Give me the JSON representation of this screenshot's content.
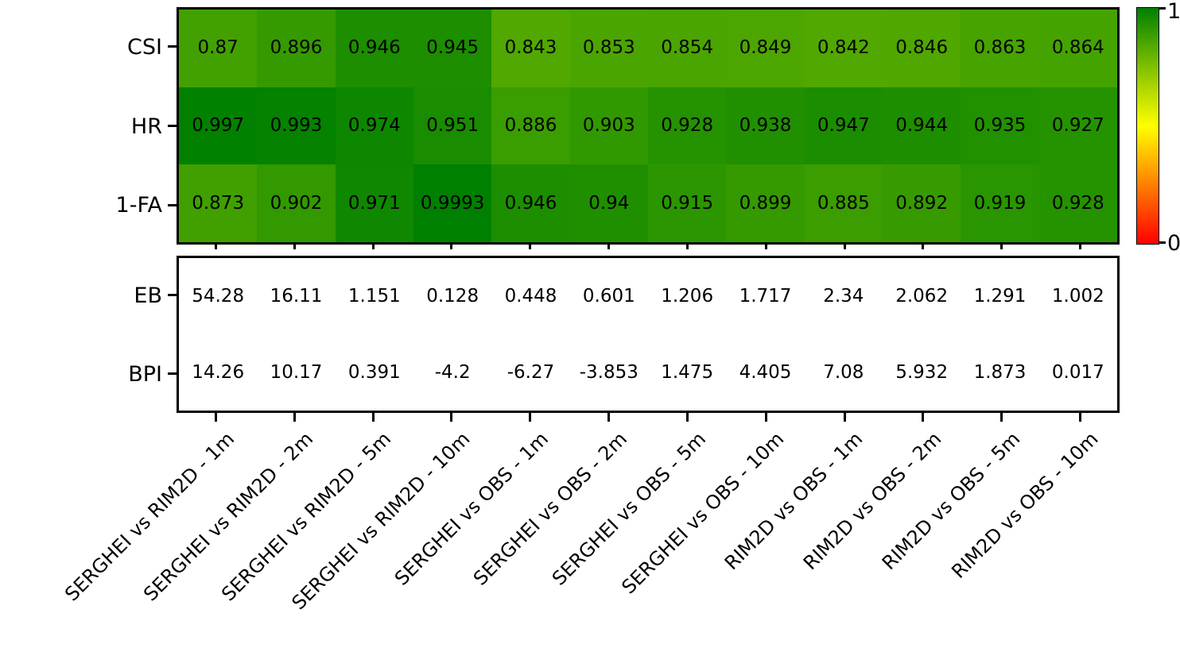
{
  "chart_data": {
    "type": "heatmap",
    "title": "",
    "xlabel": "",
    "ylabel": "",
    "categories": [
      "SERGHEI vs RIM2D - 1m",
      "SERGHEI vs RIM2D - 2m",
      "SERGHEI vs RIM2D - 5m",
      "SERGHEI vs RIM2D - 10m",
      "SERGHEI vs OBS - 1m",
      "SERGHEI vs OBS - 2m",
      "SERGHEI vs OBS - 5m",
      "SERGHEI vs OBS - 10m",
      "RIM2D vs OBS - 1m",
      "RIM2D vs OBS - 2m",
      "RIM2D vs OBS - 5m",
      "RIM2D vs OBS - 10m"
    ],
    "panels": [
      {
        "name": "skill-scores-heatmap",
        "style": "colormapped",
        "rows": [
          "CSI",
          "HR",
          "1-FA"
        ],
        "series": [
          {
            "name": "CSI",
            "values": [
              0.87,
              0.896,
              0.946,
              0.945,
              0.843,
              0.853,
              0.854,
              0.849,
              0.842,
              0.846,
              0.863,
              0.864
            ]
          },
          {
            "name": "HR",
            "values": [
              0.997,
              0.993,
              0.974,
              0.951,
              0.886,
              0.903,
              0.928,
              0.938,
              0.947,
              0.944,
              0.935,
              0.927
            ]
          },
          {
            "name": "1-FA",
            "values": [
              0.873,
              0.902,
              0.971,
              0.9993,
              0.946,
              0.94,
              0.915,
              0.899,
              0.885,
              0.892,
              0.919,
              0.928
            ]
          }
        ],
        "vmin": 0,
        "vmax": 1
      },
      {
        "name": "error-metrics-table",
        "style": "plain",
        "rows": [
          "EB",
          "BPI"
        ],
        "series": [
          {
            "name": "EB",
            "values": [
              54.28,
              16.11,
              1.151,
              0.128,
              0.448,
              0.601,
              1.206,
              1.717,
              2.34,
              2.062,
              1.291,
              1.002
            ]
          },
          {
            "name": "BPI",
            "values": [
              14.26,
              10.17,
              0.391,
              -4.2,
              -6.27,
              -3.853,
              1.475,
              4.405,
              7.08,
              5.932,
              1.873,
              0.017
            ]
          }
        ]
      }
    ],
    "colorbar": {
      "top_label": "1",
      "bottom_label": "0",
      "low_color": "#ff0000",
      "mid_color": "#ffff00",
      "high_color": "#008000"
    },
    "grid": false,
    "legend_position": "none",
    "colors": {
      "cell_text": "#000000",
      "axis": "#000000",
      "background": "#ffffff"
    }
  }
}
